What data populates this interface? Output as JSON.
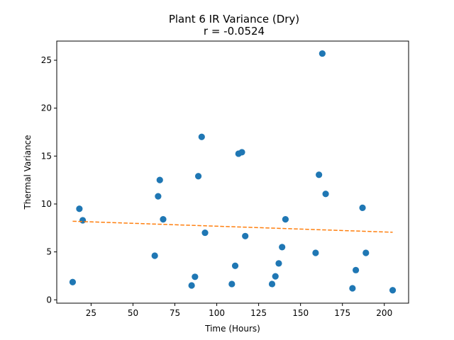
{
  "chart_data": {
    "type": "scatter",
    "title": "Plant 6 IR Variance (Dry)",
    "subtitle": "r = -0.0524",
    "xlabel": "Time (Hours)",
    "ylabel": "Thermal Variance",
    "xlim": [
      4.5,
      214.5
    ],
    "ylim": [
      -0.35,
      27.0
    ],
    "xticks": [
      25,
      50,
      75,
      100,
      125,
      150,
      175,
      200
    ],
    "yticks": [
      0,
      5,
      10,
      15,
      20,
      25
    ],
    "grid": false,
    "series": [
      {
        "name": "observations",
        "kind": "scatter",
        "color": "#1f77b4",
        "points": [
          {
            "x": 14,
            "y": 1.85
          },
          {
            "x": 18,
            "y": 9.5
          },
          {
            "x": 20,
            "y": 8.3
          },
          {
            "x": 63,
            "y": 4.6
          },
          {
            "x": 65,
            "y": 10.8
          },
          {
            "x": 66,
            "y": 12.5
          },
          {
            "x": 68,
            "y": 8.4
          },
          {
            "x": 85,
            "y": 1.5
          },
          {
            "x": 87,
            "y": 2.4
          },
          {
            "x": 89,
            "y": 12.9
          },
          {
            "x": 91,
            "y": 17.0
          },
          {
            "x": 93,
            "y": 7.0
          },
          {
            "x": 109,
            "y": 1.65
          },
          {
            "x": 111,
            "y": 3.55
          },
          {
            "x": 113,
            "y": 15.25
          },
          {
            "x": 115,
            "y": 15.4
          },
          {
            "x": 117,
            "y": 6.65
          },
          {
            "x": 133,
            "y": 1.65
          },
          {
            "x": 135,
            "y": 2.45
          },
          {
            "x": 137,
            "y": 3.8
          },
          {
            "x": 139,
            "y": 5.5
          },
          {
            "x": 141,
            "y": 8.4
          },
          {
            "x": 159,
            "y": 4.9
          },
          {
            "x": 161,
            "y": 13.05
          },
          {
            "x": 163,
            "y": 25.7
          },
          {
            "x": 165,
            "y": 11.05
          },
          {
            "x": 181,
            "y": 1.2
          },
          {
            "x": 183,
            "y": 3.1
          },
          {
            "x": 187,
            "y": 9.6
          },
          {
            "x": 189,
            "y": 4.9
          },
          {
            "x": 205,
            "y": 1.0
          }
        ]
      },
      {
        "name": "trend",
        "kind": "line",
        "color": "#ff7f0e",
        "dashed": true,
        "points": [
          {
            "x": 14,
            "y": 8.2
          },
          {
            "x": 205,
            "y": 7.05
          }
        ]
      }
    ]
  }
}
